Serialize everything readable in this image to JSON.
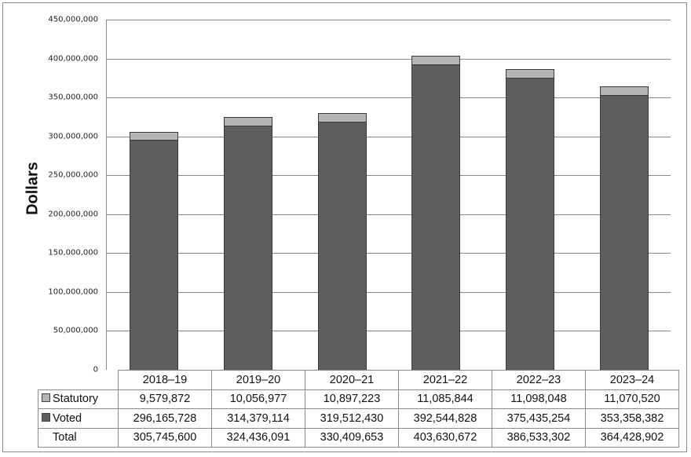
{
  "chart_data": {
    "type": "bar",
    "stacked": true,
    "title": "",
    "xlabel": "",
    "ylabel": "Dollars",
    "ylim": [
      0,
      450000000
    ],
    "yticks": [
      "0",
      "50,000,000",
      "100,000,000",
      "150,000,000",
      "200,000,000",
      "250,000,000",
      "300,000,000",
      "350,000,000",
      "400,000,000",
      "450,000,000"
    ],
    "grid": true,
    "legend_position": "table-below",
    "categories": [
      "2018–19",
      "2019–20",
      "2020–21",
      "2021–22",
      "2022–23",
      "2023–24"
    ],
    "series": [
      {
        "name": "Voted",
        "color": "#5e5e5e",
        "values": [
          296165728,
          314379114,
          319512430,
          392544828,
          375435254,
          353358382
        ]
      },
      {
        "name": "Statutory",
        "color": "#b5b5b5",
        "values": [
          9579872,
          10056977,
          10897223,
          11085844,
          11098048,
          11070520
        ]
      }
    ],
    "totals": [
      305745600,
      324436091,
      330409653,
      403630672,
      386533302,
      364428902
    ]
  },
  "axis": {
    "ylabel": "Dollars",
    "ticks": [
      "0",
      "50,000,000",
      "100,000,000",
      "150,000,000",
      "200,000,000",
      "250,000,000",
      "300,000,000",
      "350,000,000",
      "400,000,000",
      "450,000,000"
    ]
  },
  "table": {
    "headers": [
      "2018–19",
      "2019–20",
      "2020–21",
      "2021–22",
      "2022–23",
      "2023–24"
    ],
    "rows": [
      {
        "label": "Statutory",
        "values": [
          "9,579,872",
          "10,056,977",
          "10,897,223",
          "11,085,844",
          "11,098,048",
          "11,070,520"
        ]
      },
      {
        "label": "Voted",
        "values": [
          "296,165,728",
          "314,379,114",
          "319,512,430",
          "392,544,828",
          "375,435,254",
          "353,358,382"
        ]
      },
      {
        "label": "Total",
        "values": [
          "305,745,600",
          "324,436,091",
          "330,409,653",
          "403,630,672",
          "386,533,302",
          "364,428,902"
        ]
      }
    ]
  }
}
